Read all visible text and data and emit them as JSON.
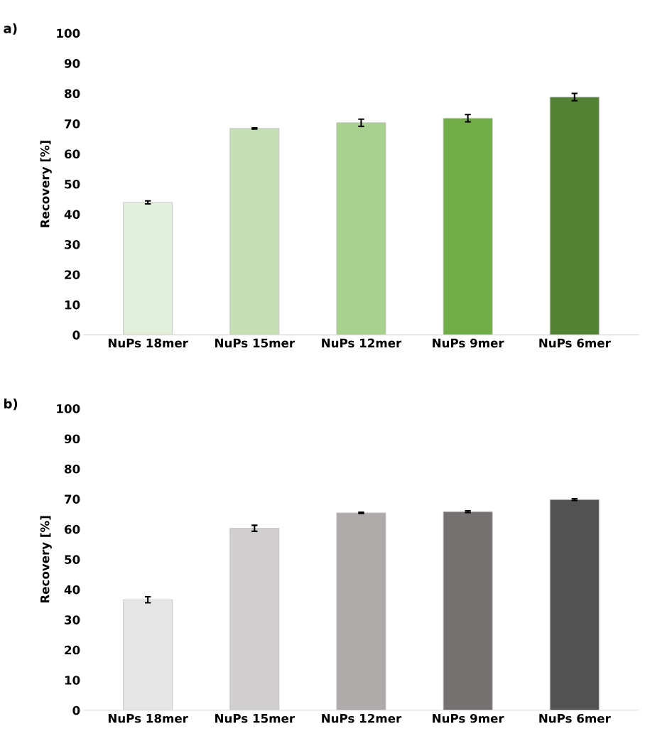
{
  "chart_data": [
    {
      "type": "bar",
      "title": "a)",
      "ylabel": "Recovery [%]",
      "categories": [
        "NuPs 18mer",
        "NuPs 15mer",
        "NuPs 12mer",
        "NuPs 9mer",
        "NuPs 6mer"
      ],
      "values": [
        43.9,
        68.4,
        70.3,
        71.8,
        78.8
      ],
      "errors": [
        0.5,
        0.2,
        1.2,
        1.2,
        1.2
      ],
      "colors": [
        "#e2efda",
        "#c5e0b4",
        "#a9d18e",
        "#70ad47",
        "#548235"
      ],
      "ylim": [
        0,
        100
      ],
      "yticks": [
        0,
        10,
        20,
        30,
        40,
        50,
        60,
        70,
        80,
        90,
        100
      ],
      "grid": false,
      "legend": false
    },
    {
      "type": "bar",
      "title": "b)",
      "ylabel": "Recovery [%]",
      "categories": [
        "NuPs 18mer",
        "NuPs 15mer",
        "NuPs 12mer",
        "NuPs 9mer",
        "NuPs 6mer"
      ],
      "values": [
        36.6,
        60.3,
        65.4,
        65.8,
        69.8
      ],
      "errors": [
        1.0,
        1.0,
        0.2,
        0.3,
        0.3
      ],
      "colors": [
        "#e7e6e6",
        "#d0cece",
        "#aeaaaa",
        "#767171",
        "#525252"
      ],
      "ylim": [
        0,
        100
      ],
      "yticks": [
        0,
        10,
        20,
        30,
        40,
        50,
        60,
        70,
        80,
        90,
        100
      ],
      "grid": false,
      "legend": false
    }
  ]
}
